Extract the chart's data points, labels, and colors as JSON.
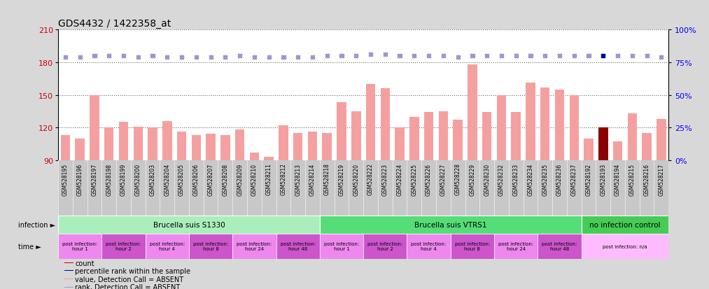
{
  "title": "GDS4432 / 1422358_at",
  "samples": [
    "GSM528195",
    "GSM528196",
    "GSM528197",
    "GSM528198",
    "GSM528199",
    "GSM528200",
    "GSM528203",
    "GSM528204",
    "GSM528205",
    "GSM528206",
    "GSM528207",
    "GSM528208",
    "GSM528209",
    "GSM528210",
    "GSM528211",
    "GSM528212",
    "GSM528213",
    "GSM528214",
    "GSM528218",
    "GSM528219",
    "GSM528220",
    "GSM528222",
    "GSM528223",
    "GSM528224",
    "GSM528225",
    "GSM528226",
    "GSM528227",
    "GSM528228",
    "GSM528229",
    "GSM528230",
    "GSM528232",
    "GSM528233",
    "GSM528234",
    "GSM528235",
    "GSM528236",
    "GSM528237",
    "GSM528192",
    "GSM528193",
    "GSM528194",
    "GSM528215",
    "GSM528216",
    "GSM528217"
  ],
  "values": [
    113,
    110,
    150,
    120,
    125,
    121,
    120,
    126,
    116,
    113,
    114,
    113,
    118,
    97,
    93,
    122,
    115,
    116,
    115,
    143,
    135,
    160,
    156,
    120,
    130,
    134,
    135,
    127,
    178,
    134,
    150,
    134,
    161,
    157,
    155,
    150,
    110,
    120,
    107,
    133,
    115,
    128
  ],
  "rank_pct": [
    79,
    79,
    80,
    80,
    80,
    79,
    80,
    79,
    79,
    79,
    79,
    79,
    80,
    79,
    79,
    79,
    79,
    79,
    80,
    80,
    80,
    81,
    81,
    80,
    80,
    80,
    80,
    79,
    80,
    80,
    80,
    80,
    80,
    80,
    80,
    80,
    80,
    80,
    80,
    80,
    80,
    79
  ],
  "dark_sample": "GSM528193",
  "bar_color_absent": "#f5a0a0",
  "bar_color_dark": "#8b0000",
  "rank_color_absent": "#9999cc",
  "rank_color_dark": "#00008b",
  "ylim": [
    90,
    210
  ],
  "yticks": [
    90,
    120,
    150,
    180,
    210
  ],
  "right_ylim": [
    0,
    100
  ],
  "right_yticks": [
    0,
    25,
    50,
    75,
    100
  ],
  "ycolor_left": "#cc0000",
  "bg_color": "#d8d8d8",
  "plot_bg": "#ffffff",
  "sample_area_bg": "#c8c8c8",
  "infection_groups": [
    {
      "label": "Brucella suis S1330",
      "start": 0,
      "end": 18,
      "color": "#aaeebb"
    },
    {
      "label": "Brucella suis VTRS1",
      "start": 18,
      "end": 36,
      "color": "#55dd77"
    },
    {
      "label": "no infection control",
      "start": 36,
      "end": 42,
      "color": "#44cc55"
    }
  ],
  "time_groups": [
    {
      "label": "post infection:\nhour 1",
      "start": 0,
      "end": 3,
      "color": "#ee88ee"
    },
    {
      "label": "post infection:\nhour 2",
      "start": 3,
      "end": 6,
      "color": "#cc55cc"
    },
    {
      "label": "post infection:\nhour 4",
      "start": 6,
      "end": 9,
      "color": "#ee88ee"
    },
    {
      "label": "post infection:\nhour 8",
      "start": 9,
      "end": 12,
      "color": "#cc55cc"
    },
    {
      "label": "post infection:\nhour 24",
      "start": 12,
      "end": 15,
      "color": "#ee88ee"
    },
    {
      "label": "post infection:\nhour 48",
      "start": 15,
      "end": 18,
      "color": "#cc55cc"
    },
    {
      "label": "post infection:\nhour 1",
      "start": 18,
      "end": 21,
      "color": "#ee88ee"
    },
    {
      "label": "post infection:\nhour 2",
      "start": 21,
      "end": 24,
      "color": "#cc55cc"
    },
    {
      "label": "post infection:\nhour 4",
      "start": 24,
      "end": 27,
      "color": "#ee88ee"
    },
    {
      "label": "post infection:\nhour 8",
      "start": 27,
      "end": 30,
      "color": "#cc55cc"
    },
    {
      "label": "post infection:\nhour 24",
      "start": 30,
      "end": 33,
      "color": "#ee88ee"
    },
    {
      "label": "post infection:\nhour 48",
      "start": 33,
      "end": 36,
      "color": "#cc55cc"
    },
    {
      "label": "post infection: n/a",
      "start": 36,
      "end": 42,
      "color": "#ffbbff"
    }
  ],
  "legend_items": [
    {
      "color": "#cc0000",
      "label": "count"
    },
    {
      "color": "#00008b",
      "label": "percentile rank within the sample"
    },
    {
      "color": "#f5a0a0",
      "label": "value, Detection Call = ABSENT"
    },
    {
      "color": "#9999cc",
      "label": "rank, Detection Call = ABSENT"
    }
  ]
}
